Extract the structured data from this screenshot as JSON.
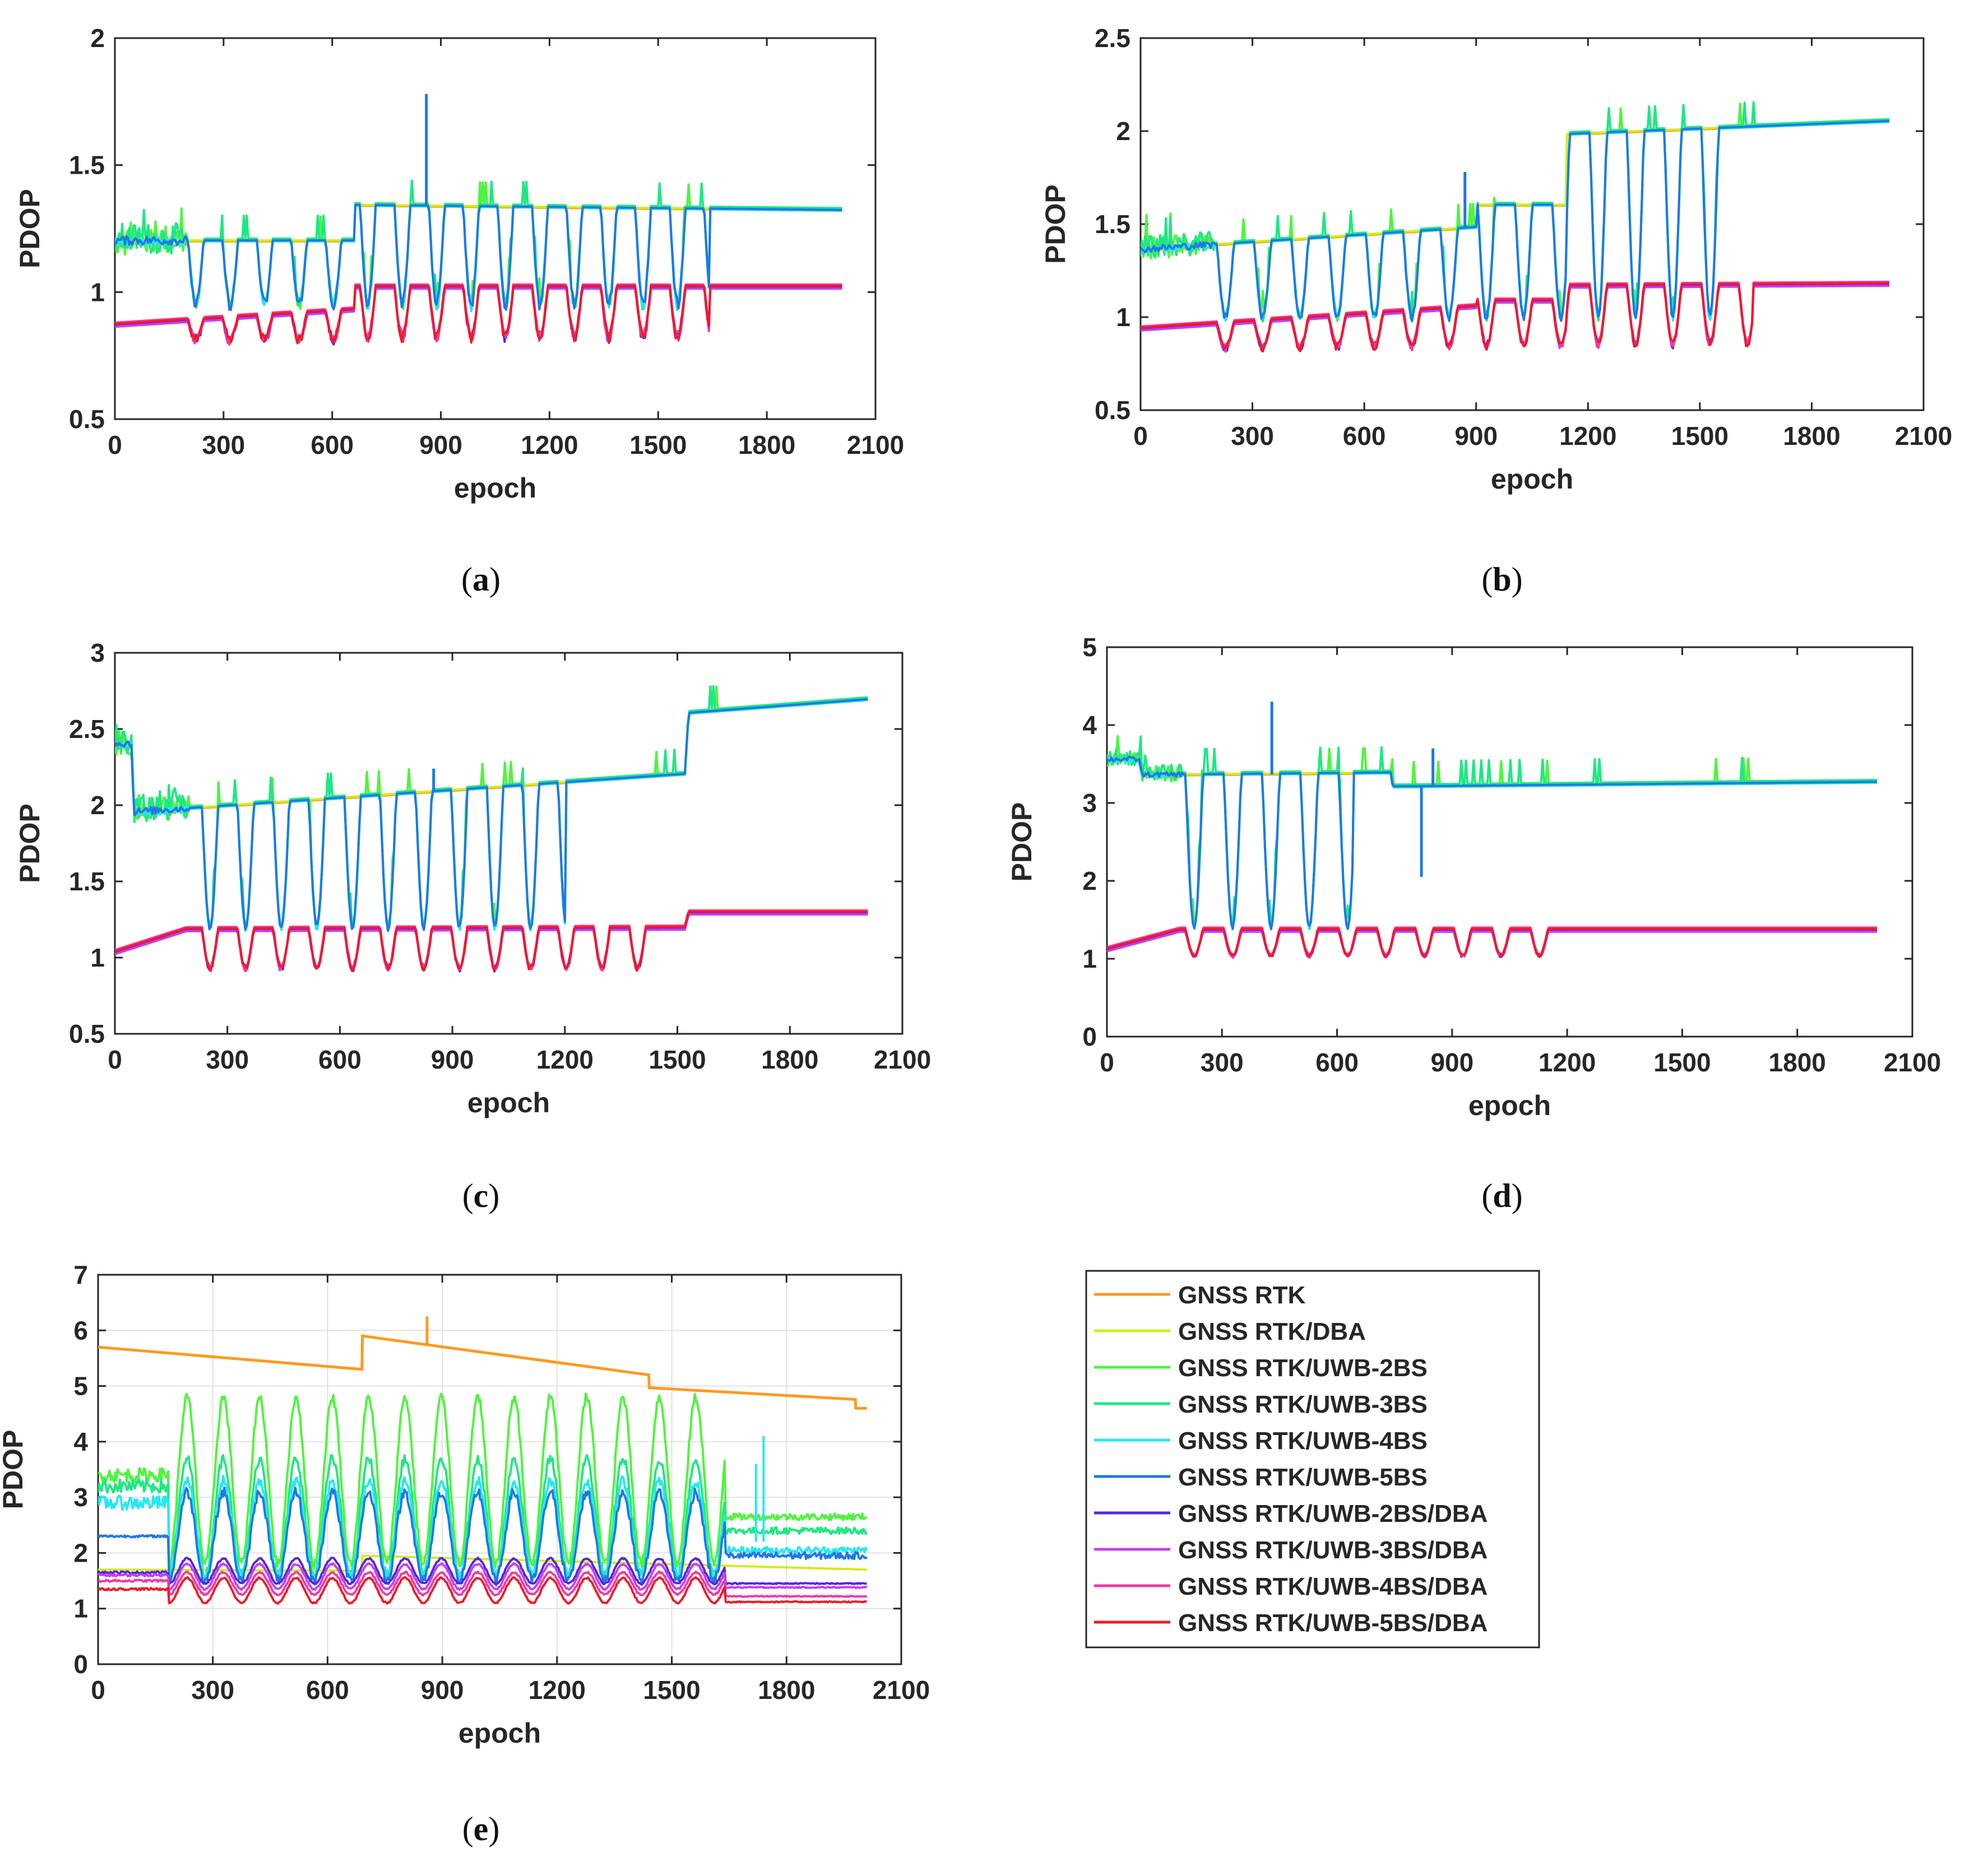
{
  "series": [
    {
      "name": "GNSS RTK",
      "color": "#ff9a1f"
    },
    {
      "name": "GNSS RTK/DBA",
      "color": "#ccef1c"
    },
    {
      "name": "GNSS RTK/UWB-2BS",
      "color": "#4ef53c"
    },
    {
      "name": "GNSS RTK/UWB-3BS",
      "color": "#1ee882"
    },
    {
      "name": "GNSS RTK/UWB-4BS",
      "color": "#25e8f2"
    },
    {
      "name": "GNSS RTK/UWB-5BS",
      "color": "#1e78e8"
    },
    {
      "name": "GNSS RTK/UWB-2BS/DBA",
      "color": "#5426e0"
    },
    {
      "name": "GNSS RTK/UWB-3BS/DBA",
      "color": "#c83ef2"
    },
    {
      "name": "GNSS RTK/UWB-4BS/DBA",
      "color": "#f23aa2"
    },
    {
      "name": "GNSS RTK/UWB-5BS/DBA",
      "color": "#f01a26"
    }
  ],
  "chart_data": [
    {
      "id": "a",
      "type": "line",
      "caption": "a",
      "xlabel": "epoch",
      "ylabel": "PDOP",
      "xlim": [
        0,
        2100
      ],
      "ylim": [
        0.5,
        2
      ],
      "xticks": [
        "0",
        "300",
        "600",
        "900",
        "1200",
        "1500",
        "1800",
        "2100"
      ],
      "yticks": [
        "0.5",
        "1",
        "1.5",
        "2"
      ],
      "grid": false,
      "groups": {
        "high": {
          "level": [
            [
              0,
              1.2
            ],
            [
              660,
              1.2
            ],
            [
              661,
              1.34
            ],
            [
              2010,
              1.32
            ]
          ],
          "dip": 0.95,
          "period": 95,
          "dipStart": 150,
          "dipEnd": 1640,
          "noise": 0.03
        },
        "low": {
          "level": [
            [
              0,
              0.88
            ],
            [
              660,
              0.94
            ],
            [
              661,
              1.03
            ],
            [
              2010,
              1.03
            ]
          ],
          "dip": 0.8,
          "period": 95,
          "dipStart": 150,
          "dipEnd": 1640
        }
      },
      "spikes": [
        [
          860,
          1.78
        ]
      ]
    },
    {
      "id": "b",
      "type": "line",
      "caption": "b",
      "xlabel": "epoch",
      "ylabel": "PDOP",
      "xlim": [
        0,
        2100
      ],
      "ylim": [
        0.5,
        2.5
      ],
      "xticks": [
        "0",
        "300",
        "600",
        "900",
        "1200",
        "1500",
        "1800",
        "2100"
      ],
      "yticks": [
        "0.5",
        "1",
        "1.5",
        "2",
        "2.5"
      ],
      "grid": false,
      "groups": {
        "high": {
          "level": [
            [
              0,
              1.36
            ],
            [
              900,
              1.48
            ],
            [
              901,
              1.6
            ],
            [
              1140,
              1.6
            ],
            [
              1141,
              1.98
            ],
            [
              2010,
              2.05
            ]
          ],
          "dip": 1.0,
          "period": 100,
          "dipStart": 150,
          "dipEnd": 1560,
          "noise": 0.03
        },
        "low": {
          "level": [
            [
              0,
              0.95
            ],
            [
              900,
              1.07
            ],
            [
              901,
              1.1
            ],
            [
              1140,
              1.1
            ],
            [
              1141,
              1.18
            ],
            [
              2010,
              1.19
            ]
          ],
          "dip": 0.82,
          "period": 100,
          "dipStart": 150,
          "dipEnd": 1640
        }
      },
      "spikes": [
        [
          870,
          1.78
        ]
      ]
    },
    {
      "id": "c",
      "type": "line",
      "caption": "c",
      "xlabel": "epoch",
      "ylabel": "PDOP",
      "xlim": [
        0,
        2100
      ],
      "ylim": [
        0.5,
        3
      ],
      "xticks": [
        "0",
        "300",
        "600",
        "900",
        "1200",
        "1500",
        "1800",
        "2100"
      ],
      "yticks": [
        "0.5",
        "1",
        "1.5",
        "2",
        "2.5",
        "3"
      ],
      "grid": false,
      "groups": {
        "high": {
          "level": [
            [
              0,
              2.4
            ],
            [
              45,
              2.4
            ],
            [
              50,
              1.95
            ],
            [
              1520,
              2.2
            ],
            [
              1530,
              2.6
            ],
            [
              2010,
              2.69
            ]
          ],
          "dip": 1.2,
          "period": 95,
          "dipStart": 180,
          "dipEnd": 1200,
          "noise": 0.04
        },
        "low": {
          "level": [
            [
              0,
              1.05
            ],
            [
              190,
              1.2
            ],
            [
              1520,
              1.21
            ],
            [
              1530,
              1.31
            ],
            [
              2010,
              1.31
            ]
          ],
          "dip": 0.9,
          "period": 95,
          "dipStart": 180,
          "dipEnd": 1440
        }
      },
      "spikes": [
        [
          850,
          2.24
        ]
      ]
    },
    {
      "id": "d",
      "type": "line",
      "caption": "d",
      "xlabel": "epoch",
      "ylabel": "PDOP",
      "xlim": [
        0,
        2100
      ],
      "ylim": [
        0,
        5
      ],
      "xticks": [
        "0",
        "300",
        "600",
        "900",
        "1200",
        "1500",
        "1800",
        "2100"
      ],
      "yticks": [
        "0",
        "1",
        "2",
        "3",
        "4",
        "5"
      ],
      "grid": false,
      "groups": {
        "high": {
          "level": [
            [
              0,
              3.55
            ],
            [
              85,
              3.55
            ],
            [
              90,
              3.35
            ],
            [
              740,
              3.38
            ],
            [
              745,
              3.2
            ],
            [
              2010,
              3.26
            ]
          ],
          "dip": 1.4,
          "period": 100,
          "dipStart": 150,
          "dipEnd": 640,
          "noise": 0.05
        },
        "low": {
          "level": [
            [
              0,
              1.15
            ],
            [
              190,
              1.4
            ],
            [
              2010,
              1.4
            ]
          ],
          "dip": 1.0,
          "period": 100,
          "dipStart": 150,
          "dipEnd": 1200
        }
      },
      "spikes": [
        [
          430,
          4.3
        ],
        [
          850,
          3.7
        ],
        [
          820,
          2.05
        ]
      ]
    },
    {
      "id": "e",
      "type": "line",
      "caption": "e",
      "xlabel": "epoch",
      "ylabel": "PDOP",
      "xlim": [
        0,
        2100
      ],
      "ylim": [
        0,
        7
      ],
      "xticks": [
        "0",
        "300",
        "600",
        "900",
        "1200",
        "1500",
        "1800",
        "2100"
      ],
      "yticks": [
        "0",
        "1",
        "2",
        "3",
        "4",
        "5",
        "6",
        "7"
      ],
      "grid": true,
      "rtk": [
        [
          0,
          5.7
        ],
        [
          690,
          5.3
        ],
        [
          691,
          5.9
        ],
        [
          1440,
          5.2
        ],
        [
          1441,
          4.97
        ],
        [
          1980,
          4.76
        ],
        [
          1981,
          4.6
        ],
        [
          2010,
          4.6
        ]
      ],
      "dba": [
        [
          0,
          1.7
        ],
        [
          690,
          1.68
        ],
        [
          691,
          1.95
        ],
        [
          2010,
          1.7
        ]
      ],
      "oscillating": [
        {
          "base": 3.4,
          "peak": 4.8,
          "trough": 1.8,
          "tail": 2.65
        },
        {
          "base": 3.2,
          "peak": 3.7,
          "trough": 1.6,
          "tail": 2.4
        },
        {
          "base": 2.9,
          "peak": 3.3,
          "trough": 1.6,
          "tail": 2.05
        },
        {
          "base": 2.3,
          "peak": 3.1,
          "trough": 1.5,
          "tail": 1.95
        },
        {
          "base": 1.65,
          "peak": 1.9,
          "trough": 1.45,
          "tail": 1.45
        },
        {
          "base": 1.6,
          "peak": 1.8,
          "trough": 1.35,
          "tail": 1.38
        },
        {
          "base": 1.5,
          "peak": 1.65,
          "trough": 1.25,
          "tail": 1.22
        },
        {
          "base": 1.35,
          "peak": 1.55,
          "trough": 1.1,
          "tail": 1.12
        }
      ],
      "spikes": [
        [
          860,
          6.25
        ],
        [
          1720,
          3.6
        ],
        [
          1740,
          4.1
        ]
      ]
    }
  ]
}
